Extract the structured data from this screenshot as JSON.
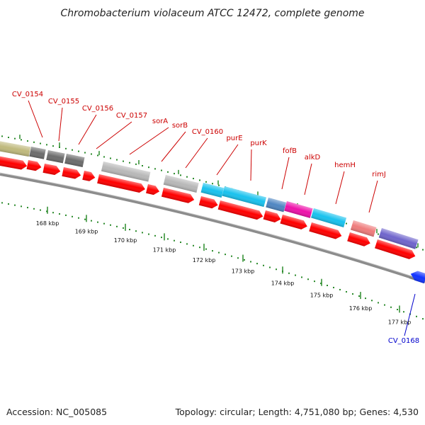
{
  "title": "Chromobacterium violaceum ATCC 12472, complete genome",
  "footer": {
    "accession": "Accession: NC_005085",
    "summary": "Topology: circular; Length: 4,751,080 bp; Genes: 4,530"
  },
  "colors": {
    "label_top": "#cc0000",
    "label_bottom": "#0000cc",
    "dots": "#2a8a2a",
    "backbone": "#8c8c8c",
    "cds": "#ff0000",
    "grey": "#b8b8b8",
    "darkgrey": "#6c6c6c",
    "olive": "#bfb97c",
    "cyan": "#19c2ee",
    "steel": "#4f86c2",
    "magenta": "#ee11aa",
    "salmon": "#ef7c7c",
    "purple": "#6f65cc",
    "blue": "#1133ff"
  },
  "labels": [
    {
      "name": "CV_0154",
      "color": "label_top"
    },
    {
      "name": "CV_0155",
      "color": "label_top"
    },
    {
      "name": "CV_0156",
      "color": "label_top"
    },
    {
      "name": "CV_0157",
      "color": "label_top"
    },
    {
      "name": "sorA",
      "color": "label_top"
    },
    {
      "name": "sorB",
      "color": "label_top"
    },
    {
      "name": "CV_0160",
      "color": "label_top"
    },
    {
      "name": "purE",
      "color": "label_top"
    },
    {
      "name": "purK",
      "color": "label_top"
    },
    {
      "name": "fofB",
      "color": "label_top"
    },
    {
      "name": "alkD",
      "color": "label_top"
    },
    {
      "name": "hemH",
      "color": "label_top"
    },
    {
      "name": "rimJ",
      "color": "label_top"
    },
    {
      "name": "CV_0168",
      "color": "label_bottom"
    }
  ],
  "ticks": [
    {
      "label": "168 kbp"
    },
    {
      "label": "169 kbp"
    },
    {
      "label": "170 kbp"
    },
    {
      "label": "171 kbp"
    },
    {
      "label": "172 kbp"
    },
    {
      "label": "173 kbp"
    },
    {
      "label": "174 kbp"
    },
    {
      "label": "175 kbp"
    },
    {
      "label": "176 kbp"
    },
    {
      "label": "177 kbp"
    }
  ],
  "features": [
    {
      "name": "olive-feature",
      "color": "olive"
    },
    {
      "name": "darkgrey-feature-1",
      "color": "darkgrey"
    },
    {
      "name": "darkgrey-feature-2",
      "color": "darkgrey"
    },
    {
      "name": "darkgrey-feature-3",
      "color": "darkgrey"
    },
    {
      "name": "grey-feature-1",
      "color": "grey"
    },
    {
      "name": "grey-feature-2",
      "color": "grey"
    },
    {
      "name": "cyan-feature-1",
      "color": "cyan"
    },
    {
      "name": "cyan-feature-2",
      "color": "cyan"
    },
    {
      "name": "steel-feature",
      "color": "steel"
    },
    {
      "name": "magenta-feature",
      "color": "magenta"
    },
    {
      "name": "cyan-feature-3",
      "color": "cyan"
    },
    {
      "name": "salmon-feature",
      "color": "salmon"
    },
    {
      "name": "purple-feature",
      "color": "purple"
    },
    {
      "name": "blue-feature",
      "color": "blue"
    }
  ]
}
